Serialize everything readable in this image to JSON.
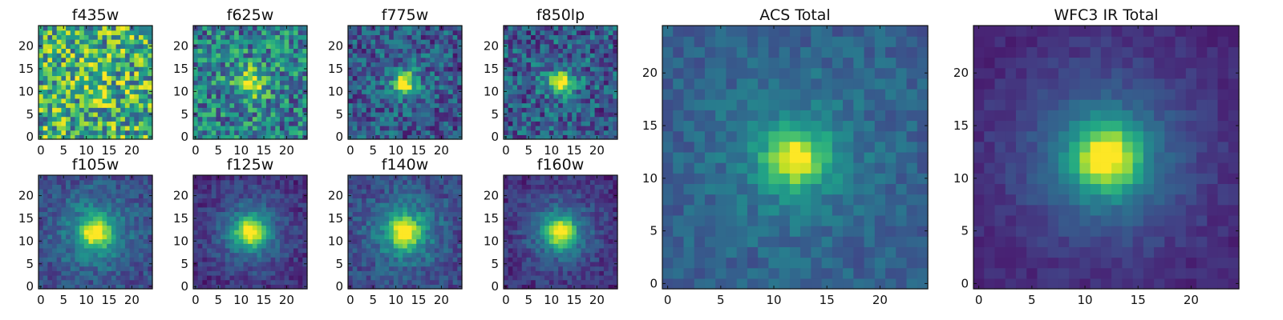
{
  "chart_data": [
    {
      "type": "heatmap",
      "title": "f435w",
      "grid": [
        25,
        25
      ],
      "xticks": [
        0,
        5,
        10,
        15,
        20
      ],
      "yticks": [
        0,
        5,
        10,
        15,
        20
      ],
      "peak": [
        12,
        12
      ],
      "source_strength": 0.15,
      "core_width": 3.0,
      "halo_strength": 0.0,
      "halo_width": 6.0,
      "background": 0.62,
      "noise": 0.38,
      "colormap": "viridis"
    },
    {
      "type": "heatmap",
      "title": "f625w",
      "grid": [
        25,
        25
      ],
      "xticks": [
        0,
        5,
        10,
        15,
        20
      ],
      "yticks": [
        0,
        5,
        10,
        15,
        20
      ],
      "peak": [
        12,
        12
      ],
      "source_strength": 0.5,
      "core_width": 2.0,
      "halo_strength": 0.1,
      "halo_width": 5.0,
      "background": 0.42,
      "noise": 0.3,
      "colormap": "viridis"
    },
    {
      "type": "heatmap",
      "title": "f775w",
      "grid": [
        25,
        25
      ],
      "xticks": [
        0,
        5,
        10,
        15,
        20
      ],
      "yticks": [
        0,
        5,
        10,
        15,
        20
      ],
      "peak": [
        12,
        12
      ],
      "source_strength": 0.72,
      "core_width": 1.6,
      "halo_strength": 0.1,
      "halo_width": 5.0,
      "background": 0.27,
      "noise": 0.22,
      "colormap": "viridis"
    },
    {
      "type": "heatmap",
      "title": "f850lp",
      "grid": [
        25,
        25
      ],
      "xticks": [
        0,
        5,
        10,
        15,
        20
      ],
      "yticks": [
        0,
        5,
        10,
        15,
        20
      ],
      "peak": [
        12,
        12
      ],
      "source_strength": 0.7,
      "core_width": 1.6,
      "halo_strength": 0.1,
      "halo_width": 5.0,
      "background": 0.28,
      "noise": 0.24,
      "colormap": "viridis"
    },
    {
      "type": "heatmap",
      "title": "f105w",
      "grid": [
        25,
        25
      ],
      "xticks": [
        0,
        5,
        10,
        15,
        20
      ],
      "yticks": [
        0,
        5,
        10,
        15,
        20
      ],
      "peak": [
        12,
        12
      ],
      "source_strength": 0.62,
      "core_width": 2.2,
      "halo_strength": 0.28,
      "halo_width": 6.0,
      "background": 0.22,
      "noise": 0.12,
      "colormap": "viridis"
    },
    {
      "type": "heatmap",
      "title": "f125w",
      "grid": [
        25,
        25
      ],
      "xticks": [
        0,
        5,
        10,
        15,
        20
      ],
      "yticks": [
        0,
        5,
        10,
        15,
        20
      ],
      "peak": [
        12,
        12
      ],
      "source_strength": 0.68,
      "core_width": 2.2,
      "halo_strength": 0.3,
      "halo_width": 6.0,
      "background": 0.12,
      "noise": 0.1,
      "colormap": "viridis"
    },
    {
      "type": "heatmap",
      "title": "f140w",
      "grid": [
        25,
        25
      ],
      "xticks": [
        0,
        5,
        10,
        15,
        20
      ],
      "yticks": [
        0,
        5,
        10,
        15,
        20
      ],
      "peak": [
        12,
        12
      ],
      "source_strength": 0.6,
      "core_width": 2.3,
      "halo_strength": 0.3,
      "halo_width": 6.0,
      "background": 0.2,
      "noise": 0.12,
      "colormap": "viridis"
    },
    {
      "type": "heatmap",
      "title": "f160w",
      "grid": [
        25,
        25
      ],
      "xticks": [
        0,
        5,
        10,
        15,
        20
      ],
      "yticks": [
        0,
        5,
        10,
        15,
        20
      ],
      "peak": [
        12,
        12
      ],
      "source_strength": 0.68,
      "core_width": 2.2,
      "halo_strength": 0.3,
      "halo_width": 6.0,
      "background": 0.12,
      "noise": 0.1,
      "colormap": "viridis"
    },
    {
      "type": "heatmap",
      "title": "ACS Total",
      "grid": [
        25,
        25
      ],
      "xticks": [
        0,
        5,
        10,
        15,
        20
      ],
      "yticks": [
        0,
        5,
        10,
        15,
        20
      ],
      "peak": [
        12,
        12
      ],
      "source_strength": 0.6,
      "core_width": 1.8,
      "halo_strength": 0.18,
      "halo_width": 5.0,
      "background": 0.3,
      "noise": 0.09,
      "colormap": "viridis"
    },
    {
      "type": "heatmap",
      "title": "WFC3 IR Total",
      "grid": [
        25,
        25
      ],
      "xticks": [
        0,
        5,
        10,
        15,
        20
      ],
      "yticks": [
        0,
        5,
        10,
        15,
        20
      ],
      "peak": [
        12,
        12
      ],
      "source_strength": 0.7,
      "core_width": 2.2,
      "halo_strength": 0.3,
      "halo_width": 6.0,
      "background": 0.1,
      "noise": 0.05,
      "colormap": "viridis"
    }
  ]
}
